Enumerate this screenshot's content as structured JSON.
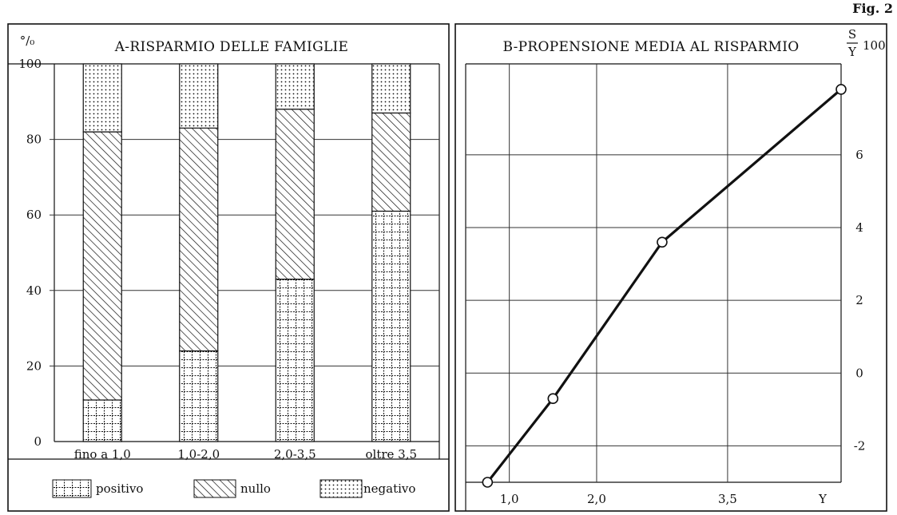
{
  "figure_label": "Fig. 2",
  "chart_data": [
    {
      "type": "bar",
      "stacked": true,
      "title": "A-RISPARMIO DELLE FAMIGLIE",
      "ylabel": "°/₀",
      "ylim": [
        0,
        100
      ],
      "yticks": [
        "0",
        "20",
        "40",
        "60",
        "80",
        "100"
      ],
      "categories": [
        "fino a 1,0",
        "1,0-2,0",
        "2,0-3,5",
        "oltre 3,5"
      ],
      "series": [
        {
          "name": "positivo",
          "values": [
            11,
            24,
            43,
            61
          ],
          "pattern": "grid"
        },
        {
          "name": "nullo",
          "values": [
            71,
            59,
            45,
            26
          ],
          "pattern": "hatch"
        },
        {
          "name": "negativo",
          "values": [
            18,
            17,
            12,
            13
          ],
          "pattern": "dots"
        }
      ],
      "legend": "bottom",
      "grid": true
    },
    {
      "type": "line",
      "title": "B-PROPENSIONE MEDIA AL RISPARMIO",
      "ylabel_num": "S",
      "ylabel_den": "Y",
      "ylabel_suffix": "100",
      "xlabel": "Y",
      "xticks": [
        "1,0",
        "2,0",
        "3,5"
      ],
      "yticks": [
        "-2",
        "0",
        "2",
        "4",
        "6"
      ],
      "xlim": [
        0.5,
        4.8
      ],
      "ylim": [
        -3,
        8.5
      ],
      "x": [
        0.75,
        1.5,
        2.75,
        4.8
      ],
      "y": [
        -3.0,
        -0.7,
        3.6,
        7.8
      ],
      "markers": "circle",
      "grid": true
    }
  ]
}
